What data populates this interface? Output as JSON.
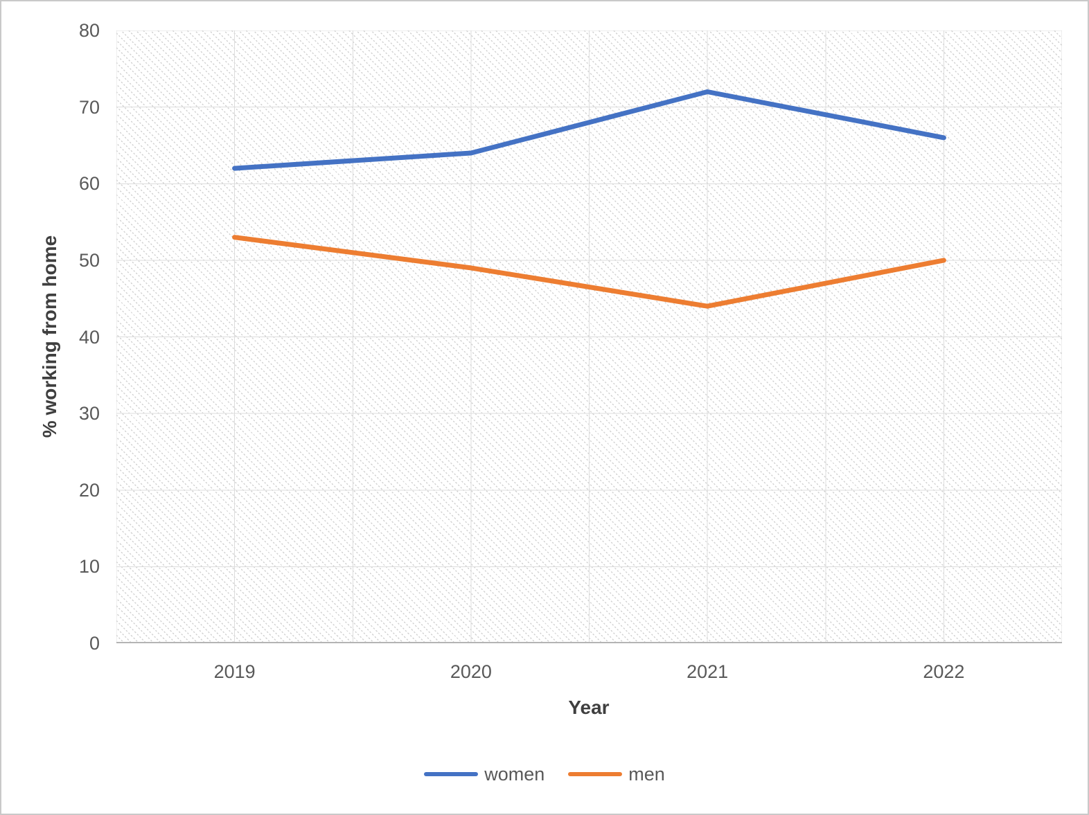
{
  "chart_data": {
    "type": "line",
    "categories": [
      "2019",
      "2020",
      "2021",
      "2022"
    ],
    "series": [
      {
        "name": "women",
        "color": "#4472C4",
        "values": [
          62,
          64,
          72,
          66
        ]
      },
      {
        "name": "men",
        "color": "#ED7D31",
        "values": [
          53,
          49,
          44,
          50
        ]
      }
    ],
    "title": "",
    "xlabel": "Year",
    "ylabel": "% working from home",
    "ylim": [
      0,
      80
    ],
    "yticks": [
      0,
      10,
      20,
      30,
      40,
      50,
      60,
      70,
      80
    ],
    "grid": "both",
    "grid_minor_x": true,
    "legend_position": "bottom",
    "plot_background": "diagonal-hatch"
  },
  "colors": {
    "gridline": "#dcdcdc",
    "axis_line": "#b4b4b4",
    "tick_text": "#595959",
    "axis_title_text": "#3f3f3f",
    "frame_border": "#c9c9c9",
    "hatch_dot": "#d2d2d2"
  }
}
